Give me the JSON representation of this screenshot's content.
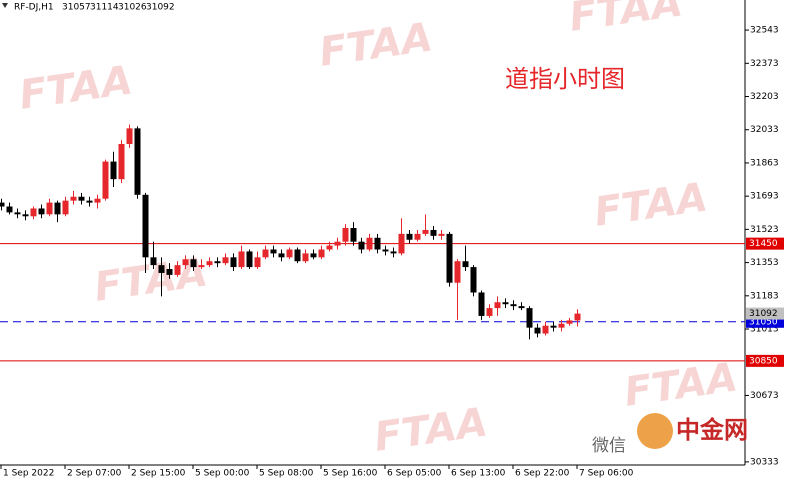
{
  "chart_data": {
    "type": "candlestick",
    "symbol": "RF-DJ,H1",
    "annotation": "道指小时图",
    "watermark": "FTAA",
    "overlay_texts": [
      "微信",
      "中金网"
    ],
    "categories": [
      "1 Sep 2022",
      null,
      null,
      null,
      null,
      null,
      null,
      null,
      "2 Sep 07:00",
      null,
      null,
      null,
      null,
      null,
      null,
      null,
      "2 Sep 15:00",
      null,
      null,
      null,
      null,
      null,
      null,
      null,
      "5 Sep 00:00",
      null,
      null,
      null,
      null,
      null,
      null,
      null,
      "5 Sep 08:00",
      null,
      null,
      null,
      null,
      null,
      null,
      null,
      "5 Sep 16:00",
      null,
      null,
      null,
      null,
      null,
      null,
      null,
      "6 Sep 05:00",
      null,
      null,
      null,
      null,
      null,
      null,
      null,
      "6 Sep 13:00",
      null,
      null,
      null,
      null,
      null,
      null,
      null,
      "6 Sep 22:00",
      null,
      null,
      null,
      null,
      null,
      null,
      null,
      "7 Sep 06:00"
    ],
    "open": [
      31660,
      31640,
      31610,
      31600,
      31590,
      31630,
      31600,
      31660,
      31600,
      31670,
      31690,
      31670,
      31660,
      31680,
      31870,
      31780,
      31960,
      32040,
      31700,
      31380,
      31340,
      31320,
      31290,
      31340,
      31370,
      31330,
      31340,
      31360,
      31350,
      31380,
      31330,
      31410,
      31330,
      31380,
      31420,
      31400,
      31380,
      31420,
      31360,
      31400,
      31380,
      31420,
      31440,
      31460,
      31530,
      31460,
      31420,
      31480,
      31420,
      31410,
      31400,
      31500,
      31470,
      31500,
      31520,
      31490,
      31500,
      31250,
      31360,
      31330,
      31200,
      31080,
      31120,
      31150,
      31140,
      31130,
      31120,
      31020,
      30990,
      31030,
      31020,
      31040,
      31057
    ],
    "high": [
      31680,
      31660,
      31630,
      31620,
      31640,
      31650,
      31680,
      31670,
      31690,
      31720,
      31710,
      31690,
      31700,
      31880,
      31920,
      31980,
      32060,
      32050,
      31710,
      31460,
      31380,
      31350,
      31360,
      31390,
      31390,
      31370,
      31380,
      31380,
      31400,
      31400,
      31440,
      31420,
      31410,
      31440,
      31440,
      31420,
      31430,
      31430,
      31420,
      31420,
      31440,
      31460,
      31480,
      31550,
      31560,
      31480,
      31500,
      31500,
      31440,
      31430,
      31580,
      31520,
      31520,
      31600,
      31540,
      31520,
      31510,
      31370,
      31440,
      31340,
      31210,
      31140,
      31180,
      31170,
      31160,
      31150,
      31130,
      31040,
      31050,
      31050,
      31060,
      31070,
      31114
    ],
    "low": [
      31620,
      31600,
      31580,
      31570,
      31575,
      31580,
      31590,
      31560,
      31590,
      31650,
      31650,
      31640,
      31630,
      31670,
      31740,
      31760,
      31940,
      31680,
      31300,
      31320,
      31180,
      31270,
      31280,
      31320,
      31310,
      31320,
      31330,
      31330,
      31340,
      31310,
      31320,
      31320,
      31320,
      31370,
      31380,
      31360,
      31370,
      31350,
      31350,
      31370,
      31370,
      31410,
      31420,
      31440,
      31440,
      31400,
      31410,
      31400,
      31390,
      31380,
      31390,
      31450,
      31460,
      31490,
      31470,
      31470,
      31230,
      31060,
      31310,
      31180,
      31060,
      31070,
      31080,
      31120,
      31110,
      31110,
      30960,
      30970,
      30980,
      31000,
      31000,
      31030,
      31026
    ],
    "close": [
      31640,
      31610,
      31600,
      31590,
      31630,
      31600,
      31660,
      31600,
      31670,
      31690,
      31670,
      31660,
      31680,
      31870,
      31780,
      31960,
      32040,
      31700,
      31380,
      31340,
      31300,
      31290,
      31340,
      31370,
      31330,
      31340,
      31360,
      31350,
      31380,
      31330,
      31410,
      31330,
      31380,
      31420,
      31400,
      31380,
      31420,
      31360,
      31400,
      31380,
      31420,
      31440,
      31460,
      31530,
      31460,
      31420,
      31480,
      31420,
      31410,
      31400,
      31500,
      31470,
      31500,
      31520,
      31490,
      31500,
      31250,
      31360,
      31330,
      31200,
      31080,
      31120,
      31150,
      31140,
      31130,
      31120,
      31020,
      30990,
      31030,
      31020,
      31040,
      31057,
      31092
    ],
    "up_color": "#e5262a",
    "down_color": "#000000",
    "ylim": [
      30317,
      32697
    ],
    "yticks": [
      32543,
      32373,
      32203,
      32033,
      31863,
      31693,
      31523,
      31353,
      31183,
      31013,
      30673,
      30333
    ],
    "levels": [
      {
        "value": 31450,
        "color": "#e00000",
        "dashed": false
      },
      {
        "value": 31050,
        "color": "#0000dd",
        "dashed": true
      },
      {
        "value": 30850,
        "color": "#e00000",
        "dashed": false
      }
    ]
  }
}
